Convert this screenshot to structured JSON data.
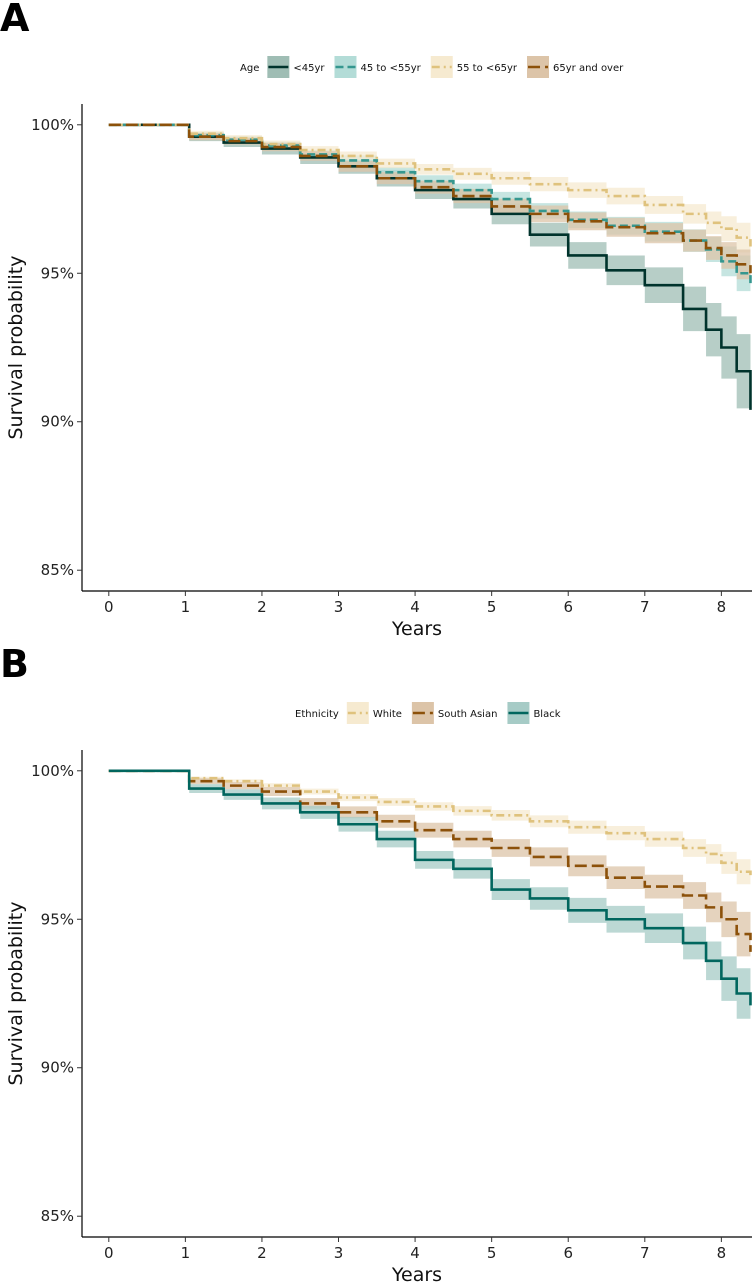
{
  "chart_data": [
    {
      "panel_label": "A",
      "type": "line",
      "xlabel": "Years",
      "ylabel": "Survival probability",
      "xlim": [
        -0.35,
        8.4
      ],
      "ylim": [
        84.3,
        100.7
      ],
      "xticks": [
        0,
        1,
        2,
        3,
        4,
        5,
        6,
        7,
        8
      ],
      "xtick_labels": [
        "0",
        "1",
        "2",
        "3",
        "4",
        "5",
        "6",
        "7",
        "8"
      ],
      "yticks": [
        85,
        90,
        95,
        100
      ],
      "ytick_labels": [
        "85%",
        "90%",
        "95%",
        "100%"
      ],
      "grid": false,
      "legend_position": "top",
      "legend_title": "Age",
      "series": [
        {
          "name": "<45yr",
          "color": "#00332c",
          "fill": "#9fbdb4",
          "dash": "solid",
          "x": [
            0,
            0.9,
            1.05,
            1.5,
            2.0,
            2.5,
            3.0,
            3.5,
            4.0,
            4.5,
            5.0,
            5.5,
            6.0,
            6.5,
            7.0,
            7.5,
            7.8,
            8.0,
            8.2,
            8.38
          ],
          "y": [
            100,
            100,
            99.6,
            99.4,
            99.2,
            98.9,
            98.6,
            98.2,
            97.8,
            97.5,
            97.0,
            96.3,
            95.6,
            95.1,
            94.6,
            93.8,
            93.1,
            92.5,
            91.7,
            90.4
          ],
          "ci": [
            0,
            0,
            0.15,
            0.15,
            0.2,
            0.22,
            0.25,
            0.28,
            0.3,
            0.32,
            0.35,
            0.4,
            0.45,
            0.5,
            0.6,
            0.75,
            0.9,
            1.05,
            1.25,
            1.5
          ]
        },
        {
          "name": "45 to <55yr",
          "color": "#35978f",
          "fill": "#b3dcd7",
          "dash": "dash",
          "x": [
            0,
            0.9,
            1.05,
            1.5,
            2.0,
            2.5,
            3.0,
            3.5,
            4.0,
            4.5,
            5.0,
            5.5,
            6.0,
            6.5,
            7.0,
            7.5,
            7.8,
            8.0,
            8.2,
            8.38
          ],
          "y": [
            100,
            100,
            99.65,
            99.5,
            99.3,
            99.0,
            98.8,
            98.4,
            98.1,
            97.8,
            97.5,
            97.1,
            96.8,
            96.6,
            96.4,
            96.1,
            95.8,
            95.4,
            95.0,
            94.6
          ],
          "ci": [
            0,
            0,
            0.1,
            0.12,
            0.13,
            0.15,
            0.17,
            0.18,
            0.2,
            0.22,
            0.24,
            0.26,
            0.28,
            0.3,
            0.33,
            0.38,
            0.42,
            0.5,
            0.6,
            0.8
          ]
        },
        {
          "name": "55 to <65yr",
          "color": "#dfc27d",
          "fill": "#f6ead0",
          "dash": "dashdot",
          "x": [
            0,
            0.9,
            1.05,
            1.5,
            2.0,
            2.5,
            3.0,
            3.5,
            4.0,
            4.5,
            5.0,
            5.5,
            6.0,
            6.5,
            7.0,
            7.5,
            7.8,
            8.0,
            8.2,
            8.38
          ],
          "y": [
            100,
            100,
            99.7,
            99.55,
            99.35,
            99.15,
            98.95,
            98.7,
            98.5,
            98.35,
            98.2,
            98.0,
            97.8,
            97.6,
            97.3,
            97.0,
            96.7,
            96.5,
            96.2,
            95.9
          ],
          "ci": [
            0,
            0,
            0.1,
            0.1,
            0.12,
            0.13,
            0.15,
            0.16,
            0.18,
            0.2,
            0.22,
            0.24,
            0.26,
            0.28,
            0.3,
            0.33,
            0.38,
            0.42,
            0.5,
            0.6
          ]
        },
        {
          "name": "65yr and over",
          "color": "#8c510a",
          "fill": "#dcc4a8",
          "dash": "longdash",
          "x": [
            0,
            0.9,
            1.05,
            1.5,
            2.0,
            2.5,
            3.0,
            3.5,
            4.0,
            4.5,
            5.0,
            5.5,
            6.0,
            6.5,
            7.0,
            7.5,
            7.8,
            8.0,
            8.2,
            8.38
          ],
          "y": [
            100,
            100,
            99.6,
            99.45,
            99.25,
            98.95,
            98.6,
            98.2,
            97.9,
            97.6,
            97.25,
            97.0,
            96.75,
            96.55,
            96.35,
            96.1,
            95.85,
            95.6,
            95.3,
            95.0
          ],
          "ci": [
            0,
            0,
            0.12,
            0.12,
            0.14,
            0.16,
            0.18,
            0.2,
            0.22,
            0.24,
            0.26,
            0.28,
            0.3,
            0.32,
            0.34,
            0.37,
            0.4,
            0.45,
            0.5,
            0.6
          ]
        }
      ]
    },
    {
      "panel_label": "B",
      "type": "line",
      "xlabel": "Years",
      "ylabel": "Survival probability",
      "xlim": [
        -0.35,
        8.4
      ],
      "ylim": [
        84.3,
        100.7
      ],
      "xticks": [
        0,
        1,
        2,
        3,
        4,
        5,
        6,
        7,
        8
      ],
      "xtick_labels": [
        "0",
        "1",
        "2",
        "3",
        "4",
        "5",
        "6",
        "7",
        "8"
      ],
      "yticks": [
        85,
        90,
        95,
        100
      ],
      "ytick_labels": [
        "85%",
        "90%",
        "95%",
        "100%"
      ],
      "grid": false,
      "legend_position": "top",
      "legend_title": "Ethnicity",
      "series": [
        {
          "name": "White",
          "color": "#dfc27d",
          "fill": "#f6ead0",
          "dash": "dashdot",
          "x": [
            0,
            0.9,
            1.05,
            1.5,
            2.0,
            2.5,
            3.0,
            3.5,
            4.0,
            4.5,
            5.0,
            5.5,
            6.0,
            6.5,
            7.0,
            7.5,
            7.8,
            8.0,
            8.2,
            8.38
          ],
          "y": [
            100,
            100,
            99.75,
            99.65,
            99.5,
            99.3,
            99.1,
            98.95,
            98.8,
            98.65,
            98.5,
            98.3,
            98.1,
            97.9,
            97.7,
            97.4,
            97.2,
            96.9,
            96.6,
            96.4
          ],
          "ci": [
            0,
            0,
            0.05,
            0.06,
            0.08,
            0.1,
            0.12,
            0.13,
            0.14,
            0.16,
            0.18,
            0.2,
            0.22,
            0.24,
            0.26,
            0.3,
            0.33,
            0.37,
            0.42,
            0.5
          ]
        },
        {
          "name": "South Asian",
          "color": "#8c510a",
          "fill": "#dcc4a8",
          "dash": "longdash",
          "x": [
            0,
            0.9,
            1.05,
            1.5,
            2.0,
            2.5,
            3.0,
            3.5,
            4.0,
            4.5,
            5.0,
            5.5,
            6.0,
            6.5,
            7.0,
            7.5,
            7.8,
            8.0,
            8.2,
            8.38
          ],
          "y": [
            100,
            100,
            99.65,
            99.5,
            99.3,
            98.9,
            98.6,
            98.3,
            98.0,
            97.7,
            97.4,
            97.1,
            96.8,
            96.4,
            96.1,
            95.8,
            95.4,
            95.0,
            94.5,
            93.9
          ],
          "ci": [
            0,
            0,
            0.1,
            0.12,
            0.15,
            0.18,
            0.2,
            0.22,
            0.25,
            0.28,
            0.3,
            0.32,
            0.35,
            0.38,
            0.4,
            0.45,
            0.5,
            0.6,
            0.75,
            0.95
          ]
        },
        {
          "name": "Black",
          "color": "#01665e",
          "fill": "#a6cbc6",
          "dash": "solid",
          "x": [
            0,
            0.9,
            1.05,
            1.5,
            2.0,
            2.5,
            3.0,
            3.5,
            4.0,
            4.5,
            5.0,
            5.5,
            6.0,
            6.5,
            7.0,
            7.5,
            7.8,
            8.0,
            8.2,
            8.38
          ],
          "y": [
            100,
            100,
            99.4,
            99.2,
            98.9,
            98.6,
            98.2,
            97.7,
            97.0,
            96.7,
            96.0,
            95.7,
            95.3,
            95.0,
            94.7,
            94.2,
            93.6,
            93.0,
            92.5,
            92.1
          ],
          "ci": [
            0,
            0,
            0.15,
            0.18,
            0.2,
            0.22,
            0.25,
            0.28,
            0.3,
            0.33,
            0.35,
            0.38,
            0.42,
            0.45,
            0.5,
            0.55,
            0.65,
            0.75,
            0.85,
            1.0
          ]
        }
      ]
    }
  ]
}
